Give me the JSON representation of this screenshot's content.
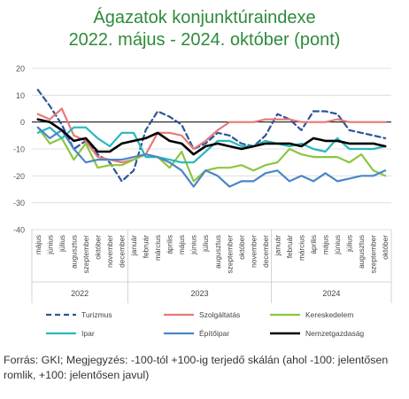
{
  "chart_data": {
    "type": "line",
    "title": "Ágazatok konjunktúraindexe",
    "subtitle": "2022. május - 2024. október (pont)",
    "xlabel": "",
    "ylabel": "",
    "ylim": [
      -40,
      20
    ],
    "yticks": [
      20,
      10,
      0,
      -10,
      -20,
      -30,
      -40
    ],
    "grid": true,
    "legend_position": "bottom",
    "categories": [
      "május",
      "június",
      "július",
      "augusztus",
      "szeptember",
      "október",
      "november",
      "december",
      "január",
      "február",
      "március",
      "április",
      "május",
      "június",
      "július",
      "augusztus",
      "szeptember",
      "október",
      "november",
      "december",
      "január",
      "február",
      "március",
      "április",
      "május",
      "június",
      "július",
      "augusztus",
      "szeptember",
      "október"
    ],
    "years": [
      {
        "label": "2022",
        "from": 0,
        "to": 7
      },
      {
        "label": "2023",
        "from": 8,
        "to": 19
      },
      {
        "label": "2024",
        "from": 20,
        "to": 29
      }
    ],
    "series": [
      {
        "name": "Turizmus",
        "color": "#2f5597",
        "dash": true,
        "values": [
          12,
          6,
          -1,
          -10,
          -7,
          -12,
          -15,
          -22,
          -18,
          -3,
          4,
          2,
          -1,
          -10,
          -8,
          -4,
          -5,
          -8,
          -9,
          -5,
          3,
          1,
          -3,
          4,
          4,
          3,
          -3,
          -4,
          -5,
          -6
        ]
      },
      {
        "name": "Szolgáltatás",
        "color": "#e8797a",
        "dash": false,
        "values": [
          3,
          1,
          5,
          -5,
          -7,
          -13,
          -14,
          -15,
          -14,
          -12,
          -4,
          -4,
          -5,
          -10,
          -7,
          -3,
          0,
          0,
          0,
          1,
          1,
          1,
          0,
          0,
          0,
          1,
          0,
          0,
          0,
          0
        ]
      },
      {
        "name": "Kereskedelem",
        "color": "#8cc63f",
        "dash": false,
        "values": [
          -2,
          -8,
          -6,
          -14,
          -8,
          -17,
          -16,
          -16,
          -14,
          -12,
          -13,
          -17,
          -11,
          -22,
          -18,
          -17,
          -17,
          -16,
          -18,
          -16,
          -15,
          -10,
          -12,
          -13,
          -13,
          -13,
          -15,
          -12,
          -18,
          -20
        ]
      },
      {
        "name": "Ipar",
        "color": "#28b8bc",
        "dash": false,
        "values": [
          -4,
          -2,
          -6,
          -2,
          -2,
          -6,
          -9,
          -4,
          -4,
          -13,
          -13,
          -14,
          -15,
          -15,
          -11,
          -7,
          -7,
          -9,
          -9,
          -7,
          -8,
          -9,
          -8,
          -10,
          -11,
          -6,
          -10,
          -10,
          -10,
          -9
        ]
      },
      {
        "name": "Építőipar",
        "color": "#4a86c4",
        "dash": false,
        "values": [
          -2,
          -6,
          -3,
          -10,
          -15,
          -14,
          -14,
          -14,
          -13,
          -12,
          -13,
          -15,
          -18,
          -24,
          -18,
          -20,
          -24,
          -22,
          -22,
          -19,
          -18,
          -22,
          -20,
          -22,
          -19,
          -22,
          -21,
          -20,
          -20,
          -18
        ]
      },
      {
        "name": "Nemzetgazdaság",
        "color": "#000000",
        "dash": false,
        "values": [
          1,
          0,
          -3,
          -7,
          -6,
          -11,
          -11,
          -8,
          -7,
          -6,
          -4,
          -7,
          -8,
          -12,
          -9,
          -8,
          -9,
          -10,
          -9,
          -8,
          -8,
          -8,
          -9,
          -6,
          -7,
          -7,
          -8,
          -8,
          -8,
          -9
        ]
      }
    ]
  },
  "source_text": "Forrás: GKI; Megjegyzés: -100-tól +100-ig terjedő skálán (ahol -100: jelentősen romlik, +100: jelentősen javul)"
}
